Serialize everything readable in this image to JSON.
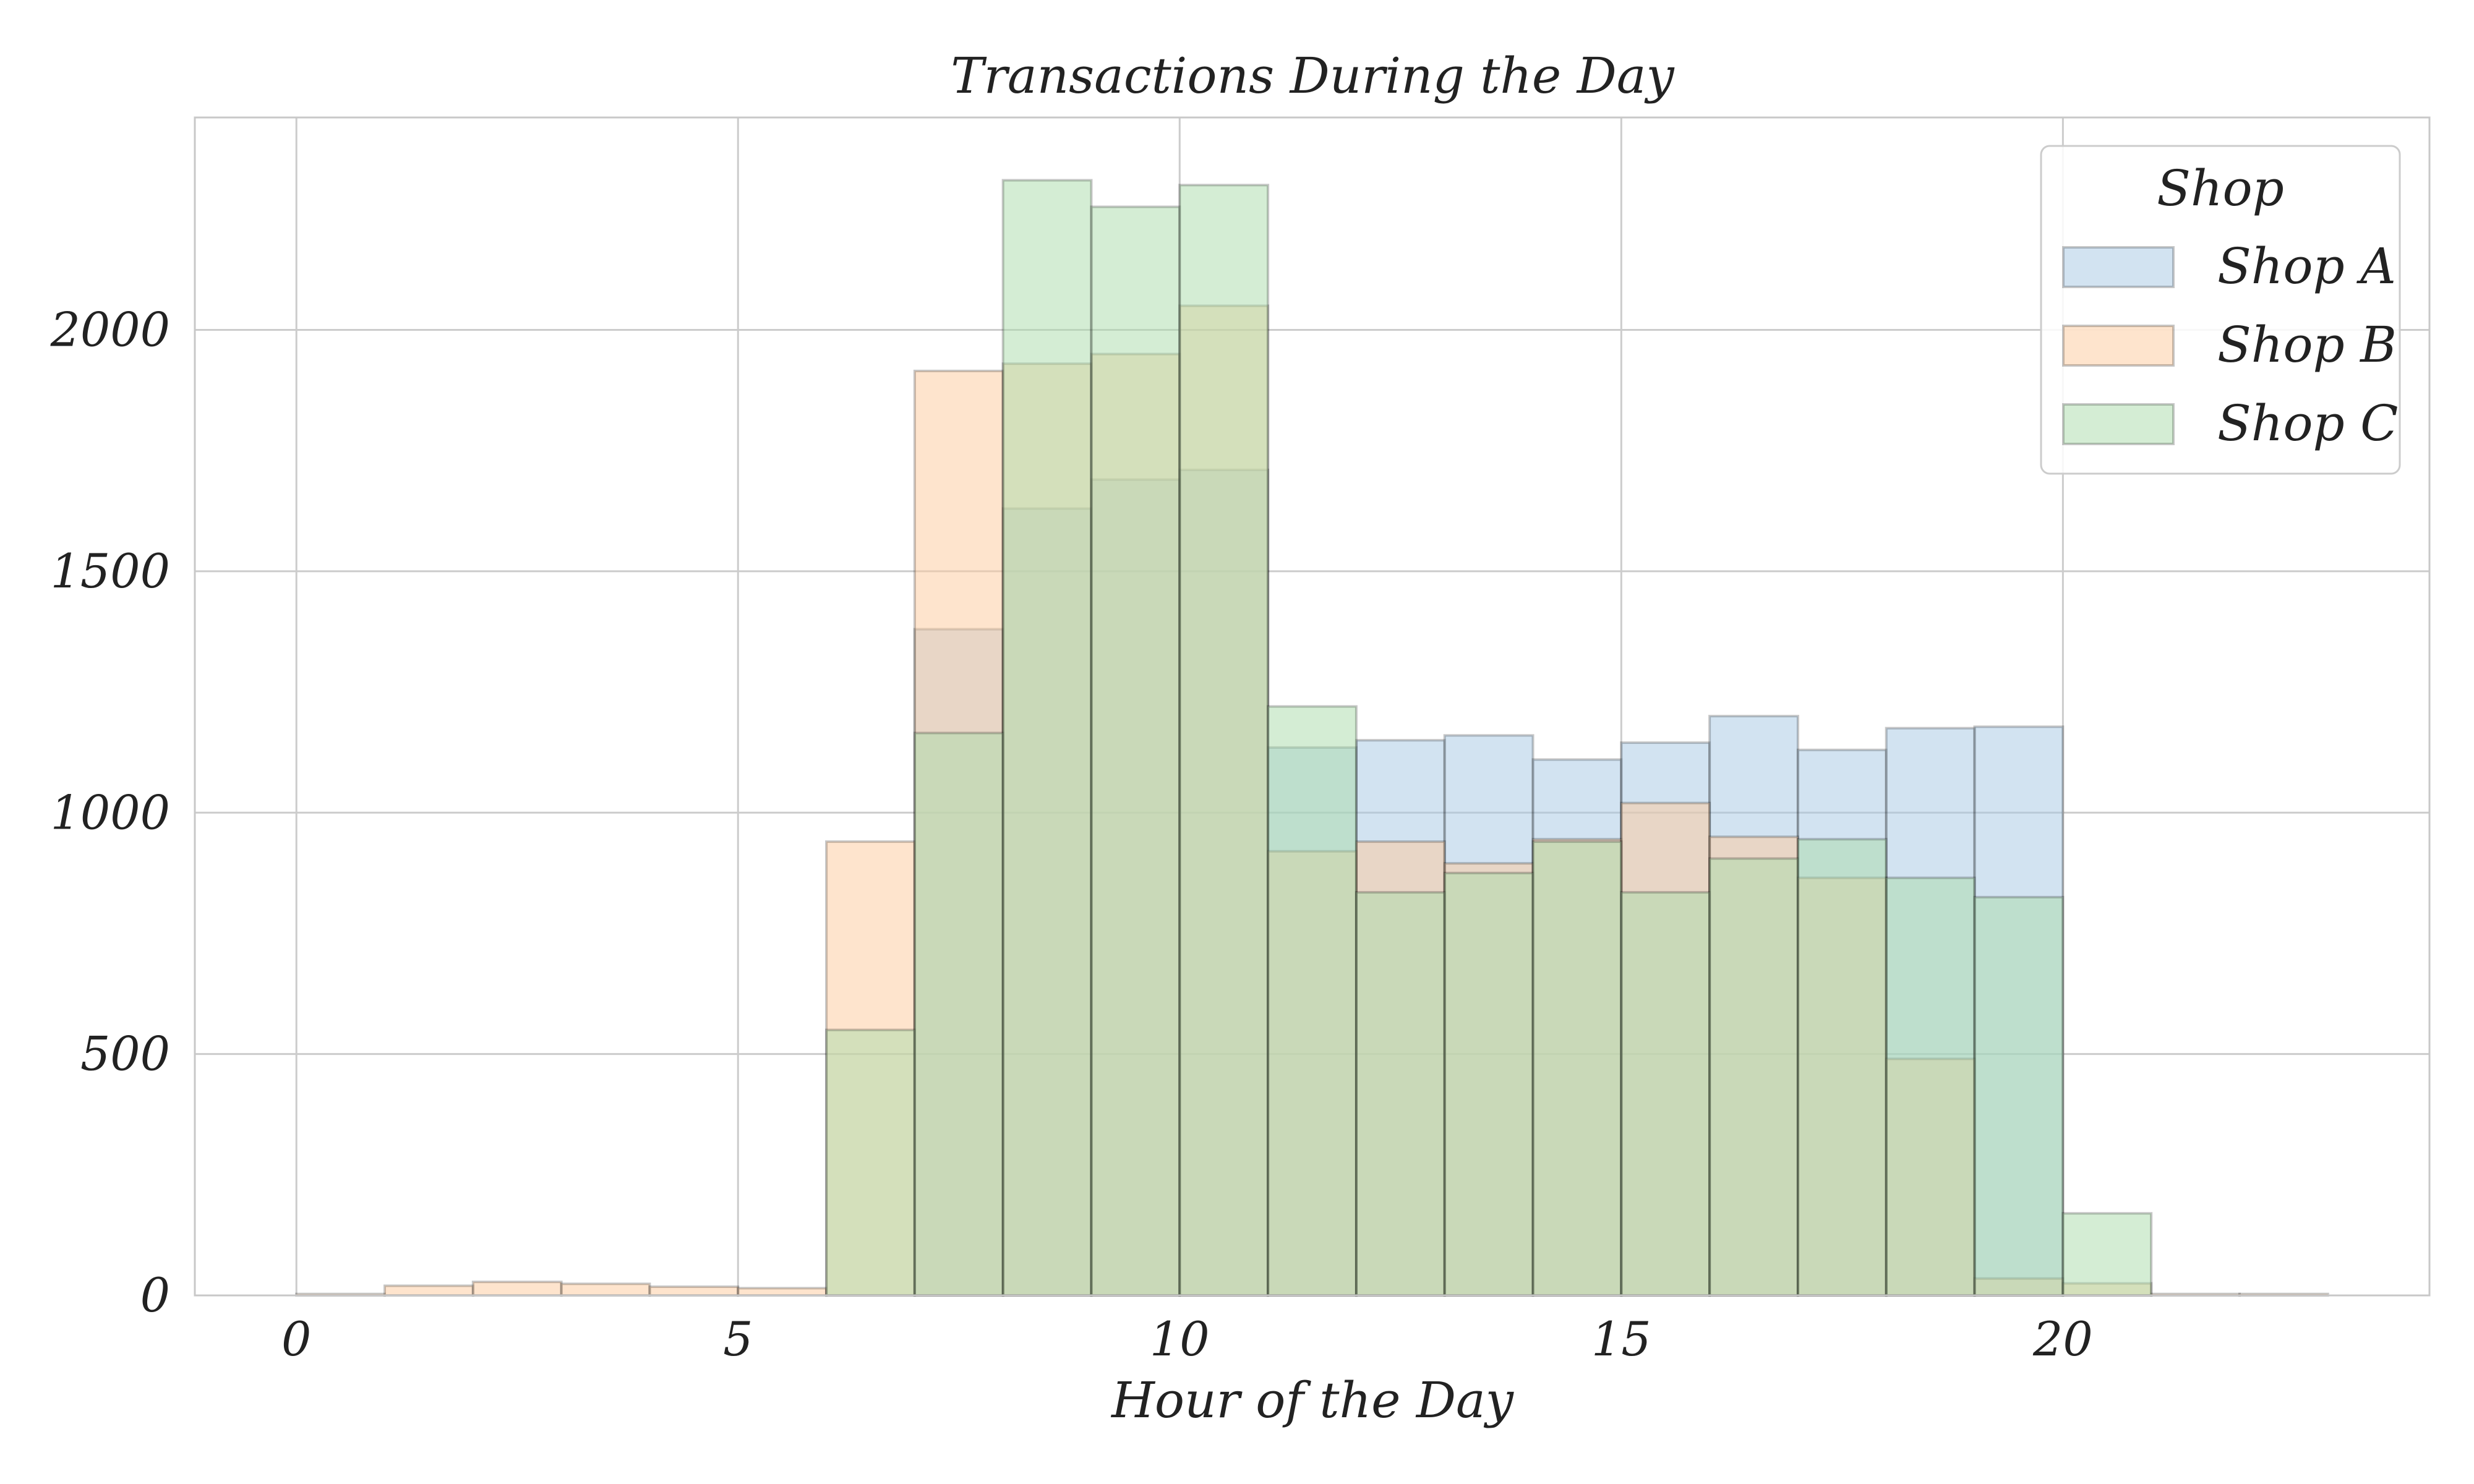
{
  "chart_data": {
    "type": "bar",
    "title": "Transactions During the Day",
    "xlabel": "Hour of the Day",
    "ylabel": "",
    "xlim": [
      -1.15,
      24.15
    ],
    "ylim": [
      0,
      2440
    ],
    "xticks": [
      0,
      5,
      10,
      15,
      20
    ],
    "yticks": [
      0,
      500,
      1000,
      1500,
      2000
    ],
    "grid": true,
    "legend": {
      "title": "Shop",
      "position": "top-right"
    },
    "bin_edges": [
      0,
      1,
      2,
      3,
      4,
      5,
      6,
      7,
      8,
      9,
      10,
      11,
      12,
      13,
      14,
      15,
      16,
      17,
      18,
      19,
      20,
      21,
      22,
      23
    ],
    "series": [
      {
        "name": "Shop A",
        "color": "#a6c8e3",
        "values": [
          0,
          0,
          0,
          0,
          0,
          0,
          0,
          1380,
          1630,
          1690,
          1710,
          1135,
          1150,
          1160,
          1110,
          1145,
          1200,
          1130,
          1175,
          1178,
          0,
          0,
          0
        ]
      },
      {
        "name": "Shop B",
        "color": "#fdc99c",
        "values": [
          3,
          20,
          28,
          24,
          18,
          15,
          940,
          1915,
          1930,
          1950,
          2050,
          920,
          940,
          895,
          945,
          1020,
          950,
          865,
          490,
          35,
          25,
          3,
          3
        ]
      },
      {
        "name": "Shop C",
        "color": "#a9dba9",
        "values": [
          0,
          0,
          0,
          0,
          0,
          0,
          550,
          1165,
          2310,
          2255,
          2300,
          1220,
          835,
          875,
          940,
          835,
          905,
          945,
          865,
          825,
          170,
          0,
          0
        ]
      }
    ]
  }
}
